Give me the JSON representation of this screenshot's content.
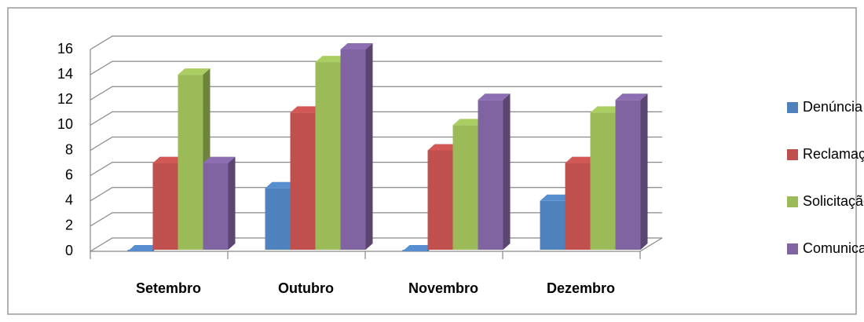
{
  "chart_data": {
    "type": "bar3d",
    "categories": [
      "Setembro",
      "Outubro",
      "Novembro",
      "Dezembro"
    ],
    "series": [
      {
        "name": "Denúncia",
        "color": "#4f81bd",
        "values": [
          0,
          5,
          0,
          4
        ]
      },
      {
        "name": "Reclamação",
        "color": "#c0504d",
        "values": [
          7,
          11,
          8,
          7
        ]
      },
      {
        "name": "Solicitação",
        "color": "#9bbb59",
        "values": [
          14,
          15,
          10,
          11
        ]
      },
      {
        "name": "Comunicação",
        "color": "#8064a2",
        "values": [
          7,
          16,
          12,
          12
        ]
      }
    ],
    "ylim": [
      0,
      16
    ],
    "yticks": [
      0,
      2,
      4,
      6,
      8,
      10,
      12,
      14,
      16
    ],
    "grid": true,
    "legend": "right"
  }
}
